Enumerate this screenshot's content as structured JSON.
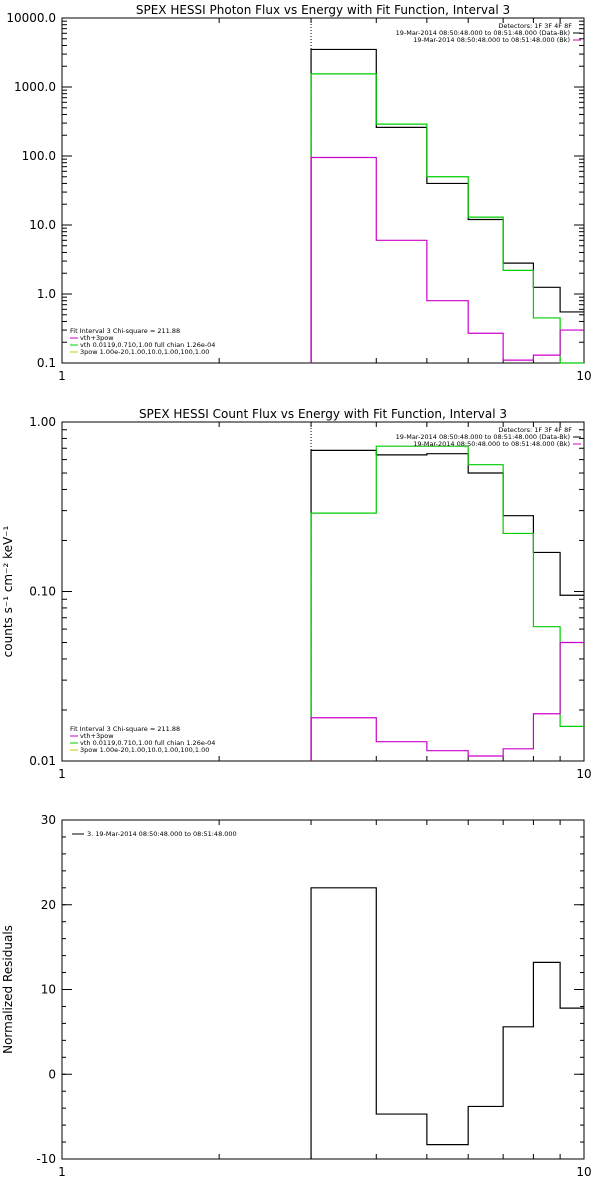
{
  "chart_data": [
    {
      "type": "line",
      "title": "SPEX HESSI Photon Flux vs Energy with Fit Function, Interval 3",
      "xlabel": "",
      "ylabel": "",
      "x_scale": "log",
      "y_scale": "log",
      "xlim": [
        1,
        10
      ],
      "ylim": [
        0.1,
        10000
      ],
      "x_ticks": [
        {
          "v": 1,
          "label": "1"
        },
        {
          "v": 10,
          "label": "10"
        }
      ],
      "y_ticks": [
        {
          "v": 0.1,
          "label": "0.1"
        },
        {
          "v": 1,
          "label": "1.0"
        },
        {
          "v": 10,
          "label": "10.0"
        },
        {
          "v": 100,
          "label": "100.0"
        },
        {
          "v": 1000,
          "label": "1000.0"
        },
        {
          "v": 10000,
          "label": "10000.0"
        }
      ],
      "marker_line_x": 3,
      "legend_right": {
        "header": "Detectors: 1F 3F 4F 8F",
        "entries": [
          {
            "text": "19-Mar-2014 08:50:48.000 to 08:51:48.000 (Data-Bk)",
            "color": "#000000"
          },
          {
            "text": "19-Mar-2014 08:50:48.000 to 08:51:48.000 (Bk)",
            "color": "#cc00cc"
          }
        ]
      },
      "legend_left": [
        {
          "text": "Fit Interval 3   Chi-square = 211.88",
          "color": null
        },
        {
          "text": "vth+3pow",
          "color": "#cc00cc"
        },
        {
          "text": "vth 0.0119,0.710,1.00   full chian 1.26e-04",
          "color": "#00cc00"
        },
        {
          "text": "3pow 1.00e-20,1.00,10.0,1.00,100,1.00",
          "color": "#cccc00"
        }
      ],
      "edges": [
        3,
        4,
        5,
        6,
        7,
        8,
        9,
        10
      ],
      "series": [
        {
          "color": "#000000",
          "values": [
            3500,
            260,
            40,
            12,
            2.8,
            1.25,
            0.55
          ]
        },
        {
          "color": "#00cc00",
          "values": [
            1550,
            290,
            50,
            13,
            2.2,
            0.45,
            0.06
          ]
        },
        {
          "color": "#cc00cc",
          "values": [
            95,
            6,
            0.8,
            0.27,
            0.11,
            0.13,
            0.3
          ]
        }
      ]
    },
    {
      "type": "line",
      "title": "SPEX HESSI Count Flux vs Energy with Fit Function, Interval 3",
      "xlabel": "",
      "ylabel": "counts s⁻¹ cm⁻² keV⁻¹",
      "x_scale": "log",
      "y_scale": "log",
      "xlim": [
        1,
        10
      ],
      "ylim": [
        0.01,
        1
      ],
      "x_ticks": [
        {
          "v": 1,
          "label": "1"
        },
        {
          "v": 10,
          "label": "10"
        }
      ],
      "y_ticks": [
        {
          "v": 0.01,
          "label": "0.01"
        },
        {
          "v": 0.1,
          "label": "0.10"
        },
        {
          "v": 1,
          "label": "1.00"
        }
      ],
      "marker_line_x": 3,
      "legend_right": {
        "header": "Detectors: 1F 3F 4F 8F",
        "entries": [
          {
            "text": "19-Mar-2014 08:50:48.000 to 08:51:48.000 (Data-Bk)",
            "color": "#000000"
          },
          {
            "text": "19-Mar-2014 08:50:48.000 to 08:51:48.000 (Bk)",
            "color": "#cc00cc"
          }
        ]
      },
      "legend_left": [
        {
          "text": "Fit Interval 3   Chi-square = 211.88",
          "color": null
        },
        {
          "text": "vth+3pow",
          "color": "#cc00cc"
        },
        {
          "text": "vth 0.0119,0.710,1.00   full chian 1.26e-04",
          "color": "#00cc00"
        },
        {
          "text": "3pow 1.00e-20,1.00,10.0,1.00,100,1.00",
          "color": "#cccc00"
        }
      ],
      "edges": [
        3,
        4,
        5,
        6,
        7,
        8,
        9,
        10
      ],
      "series": [
        {
          "color": "#000000",
          "values": [
            0.68,
            0.64,
            0.65,
            0.5,
            0.28,
            0.17,
            0.095
          ]
        },
        {
          "color": "#00cc00",
          "values": [
            0.29,
            0.72,
            0.72,
            0.56,
            0.22,
            0.062,
            0.016
          ]
        },
        {
          "color": "#cc00cc",
          "values": [
            0.018,
            0.013,
            0.0115,
            0.0107,
            0.0118,
            0.019,
            0.05
          ]
        }
      ]
    },
    {
      "type": "line",
      "title": "",
      "xlabel": "",
      "ylabel": "Normalized Residuals",
      "x_scale": "log",
      "y_scale": "linear",
      "xlim": [
        1,
        10
      ],
      "ylim": [
        -10,
        30
      ],
      "x_ticks": [
        {
          "v": 1,
          "label": "1"
        },
        {
          "v": 10,
          "label": "10"
        }
      ],
      "y_ticks": [
        {
          "v": -10,
          "label": "-10"
        },
        {
          "v": 0,
          "label": "0"
        },
        {
          "v": 10,
          "label": "10"
        },
        {
          "v": 20,
          "label": "20"
        },
        {
          "v": 30,
          "label": "30"
        }
      ],
      "legend_left": [
        {
          "text": "3. 19-Mar-2014 08:50:48.000 to 08:51:48.000",
          "color": "#000000"
        }
      ],
      "edges": [
        3,
        4,
        5,
        6,
        7,
        8,
        9,
        10
      ],
      "series": [
        {
          "color": "#000000",
          "values": [
            22,
            -4.7,
            -8.3,
            -3.8,
            5.6,
            13.2,
            7.8
          ]
        }
      ]
    }
  ]
}
